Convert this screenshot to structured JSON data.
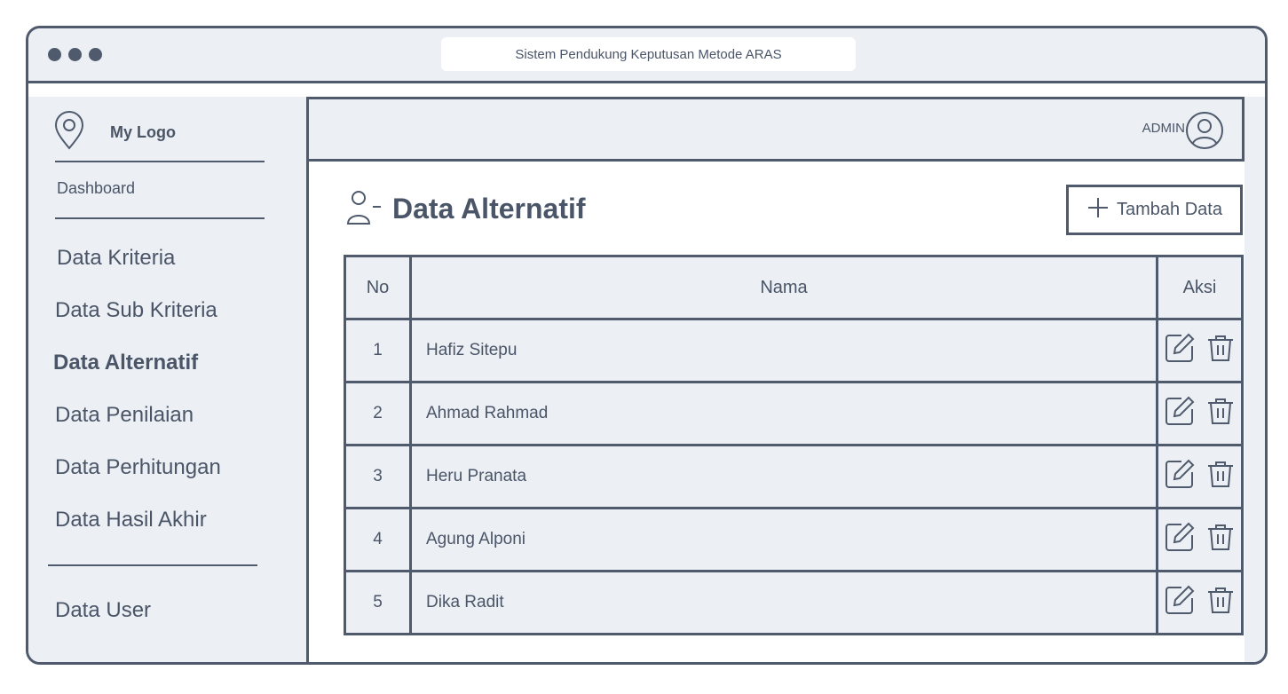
{
  "window": {
    "address": "Sistem Pendukung Keputusan Metode ARAS"
  },
  "sidebar": {
    "logo": "My Logo",
    "dashboard": "Dashboard",
    "items": [
      "Data Kriteria",
      "Data Sub Kriteria",
      "Data Alternatif",
      "Data Penilaian",
      "Data Perhitungan",
      "Data Hasil Akhir"
    ],
    "user": "Data User",
    "icons": {
      "logo": "location-pin-icon"
    }
  },
  "header": {
    "user": "ADMIN",
    "icons": {
      "avatar": "user-circle-icon"
    }
  },
  "main": {
    "title": "Data Alternatif",
    "add_button": "Tambah Data",
    "icons": {
      "title": "user-minus-icon",
      "add": "plus-icon",
      "edit": "edit-icon",
      "delete": "trash-icon"
    }
  },
  "table": {
    "columns": [
      "No",
      "Nama",
      "Aksi"
    ],
    "rows": [
      {
        "no": "1",
        "nama": "Hafiz Sitepu"
      },
      {
        "no": "2",
        "nama": "Ahmad Rahmad"
      },
      {
        "no": "3",
        "nama": "Heru Pranata"
      },
      {
        "no": "4",
        "nama": "Agung Alponi"
      },
      {
        "no": "5",
        "nama": "Dika Radit"
      }
    ]
  },
  "colors": {
    "stroke": "#4f5b6d",
    "panel": "#eceff3",
    "text": "#4a5568"
  }
}
